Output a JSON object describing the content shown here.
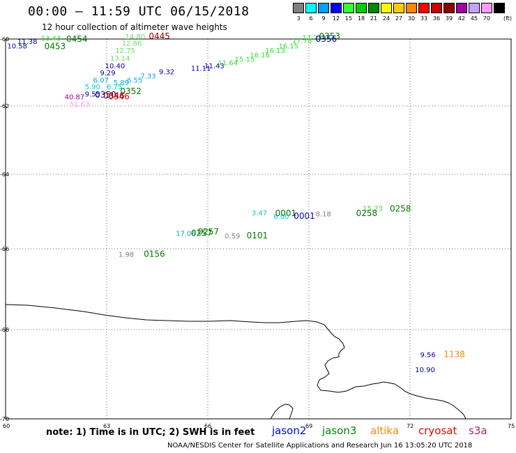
{
  "header": {
    "title": "00:00 – 11:59 UTC 06/15/2018",
    "subtitle": "12 hour collection of altimeter wave heights"
  },
  "legend": {
    "unit": "(ft)",
    "items": [
      {
        "label": "3",
        "color": "#808080"
      },
      {
        "label": "6",
        "color": "#00ffff"
      },
      {
        "label": "9",
        "color": "#00a0ff"
      },
      {
        "label": "12",
        "color": "#0000ff"
      },
      {
        "label": "15",
        "color": "#33ff33"
      },
      {
        "label": "18",
        "color": "#00cc00"
      },
      {
        "label": "21",
        "color": "#008800"
      },
      {
        "label": "24",
        "color": "#ffff00"
      },
      {
        "label": "27",
        "color": "#ffcc00"
      },
      {
        "label": "30",
        "color": "#ff8800"
      },
      {
        "label": "33",
        "color": "#ff0000"
      },
      {
        "label": "36",
        "color": "#cc0000"
      },
      {
        "label": "39",
        "color": "#880000"
      },
      {
        "label": "42",
        "color": "#a000a0"
      },
      {
        "label": "45",
        "color": "#c8a0ff"
      },
      {
        "label": "70",
        "color": "#ff99ff"
      },
      {
        "label": "",
        "color": "#000000"
      }
    ]
  },
  "axes": {
    "lon_ticks": [
      "60",
      "63",
      "66",
      "69",
      "72",
      "75"
    ],
    "lat_ticks": [
      "-60",
      "-62",
      "-64",
      "-66",
      "-68",
      "-70"
    ]
  },
  "observations": [
    {
      "text": "10.58",
      "lon": 60.05,
      "lat": -60.28,
      "color": "#0000aa"
    },
    {
      "text": "11.38",
      "lon": 60.35,
      "lat": -60.15,
      "color": "#0000aa"
    },
    {
      "text": "13.43",
      "lon": 61.05,
      "lat": -60.05,
      "color": "#33dd33"
    },
    {
      "text": "0453",
      "lon": 61.15,
      "lat": -60.3,
      "color": "#007700"
    },
    {
      "text": "0454",
      "lon": 61.8,
      "lat": -60.08,
      "color": "#007700"
    },
    {
      "text": "14.80",
      "lon": 63.55,
      "lat": -59.98,
      "color": "#66dd66"
    },
    {
      "text": "0445",
      "lon": 64.25,
      "lat": -59.98,
      "color": "#880000"
    },
    {
      "text": "12.86",
      "lon": 63.45,
      "lat": -60.2,
      "color": "#66dd66"
    },
    {
      "text": "12.75",
      "lon": 63.25,
      "lat": -60.42,
      "color": "#66dd66"
    },
    {
      "text": "13.14",
      "lon": 63.1,
      "lat": -60.65,
      "color": "#66dd66"
    },
    {
      "text": "10.40",
      "lon": 62.95,
      "lat": -60.87,
      "color": "#0000aa"
    },
    {
      "text": "9.29",
      "lon": 62.8,
      "lat": -61.08,
      "color": "#0000aa"
    },
    {
      "text": "6.07",
      "lon": 62.6,
      "lat": -61.3,
      "color": "#00aadd"
    },
    {
      "text": "5.89",
      "lon": 63.2,
      "lat": -61.38,
      "color": "#00aadd"
    },
    {
      "text": "6.55",
      "lon": 63.6,
      "lat": -61.3,
      "color": "#00aadd"
    },
    {
      "text": "7.33",
      "lon": 64.0,
      "lat": -61.18,
      "color": "#00aadd"
    },
    {
      "text": "9.32",
      "lon": 64.55,
      "lat": -61.05,
      "color": "#0000aa"
    },
    {
      "text": "5.90",
      "lon": 62.35,
      "lat": -61.5,
      "color": "#00cccc"
    },
    {
      "text": "6.75",
      "lon": 63.0,
      "lat": -61.5,
      "color": "#00cccc"
    },
    {
      "text": "0352",
      "lon": 63.4,
      "lat": -61.65,
      "color": "#007700"
    },
    {
      "text": "40.87",
      "lon": 61.75,
      "lat": -61.8,
      "color": "#990099"
    },
    {
      "text": "9.55",
      "lon": 62.35,
      "lat": -61.72,
      "color": "#0000aa"
    },
    {
      "text": "0350",
      "lon": 62.65,
      "lat": -61.75,
      "color": "#0000aa"
    },
    {
      "text": "0346",
      "lon": 62.9,
      "lat": -61.78,
      "color": "#880000"
    },
    {
      "text": "0346",
      "lon": 63.05,
      "lat": -61.8,
      "color": "#cc0000"
    },
    {
      "text": "51.63",
      "lon": 61.9,
      "lat": -62.02,
      "color": "#ff99ff"
    },
    {
      "text": "11.11",
      "lon": 65.5,
      "lat": -60.95,
      "color": "#0000aa"
    },
    {
      "text": "11.43",
      "lon": 65.9,
      "lat": -60.88,
      "color": "#0000aa"
    },
    {
      "text": "11.64",
      "lon": 66.3,
      "lat": -60.78,
      "color": "#33dd33"
    },
    {
      "text": "15.15",
      "lon": 66.8,
      "lat": -60.68,
      "color": "#33dd33"
    },
    {
      "text": "16.16",
      "lon": 67.25,
      "lat": -60.55,
      "color": "#33dd33"
    },
    {
      "text": "16.13",
      "lon": 67.7,
      "lat": -60.42,
      "color": "#33dd33"
    },
    {
      "text": "16.15",
      "lon": 68.1,
      "lat": -60.28,
      "color": "#33dd33"
    },
    {
      "text": "17.78",
      "lon": 68.5,
      "lat": -60.12,
      "color": "#33dd33"
    },
    {
      "text": "17.23",
      "lon": 68.8,
      "lat": -60.03,
      "color": "#33dd33"
    },
    {
      "text": "0353",
      "lon": 69.3,
      "lat": -60.0,
      "color": "#007700"
    },
    {
      "text": "0356",
      "lon": 69.2,
      "lat": -60.08,
      "color": "#0000aa"
    },
    {
      "text": "3.47",
      "lon": 67.3,
      "lat": -65.1,
      "color": "#00cccc"
    },
    {
      "text": "0001",
      "lon": 68.0,
      "lat": -65.12,
      "color": "#007700"
    },
    {
      "text": "6.00",
      "lon": 67.95,
      "lat": -65.2,
      "color": "#00cccc"
    },
    {
      "text": "0001",
      "lon": 68.55,
      "lat": -65.2,
      "color": "#0000aa"
    },
    {
      "text": "8.18",
      "lon": 69.2,
      "lat": -65.13,
      "color": "#808080"
    },
    {
      "text": "15.23",
      "lon": 70.6,
      "lat": -64.98,
      "color": "#33dd33"
    },
    {
      "text": "0258",
      "lon": 70.4,
      "lat": -65.12,
      "color": "#007700"
    },
    {
      "text": "0258",
      "lon": 71.4,
      "lat": -65.0,
      "color": "#007700"
    },
    {
      "text": "17.06",
      "lon": 65.05,
      "lat": -65.65,
      "color": "#00aadd"
    },
    {
      "text": "0257",
      "lon": 65.5,
      "lat": -65.65,
      "color": "#007700"
    },
    {
      "text": "0257",
      "lon": 65.7,
      "lat": -65.62,
      "color": "#007700"
    },
    {
      "text": "0.59",
      "lon": 66.5,
      "lat": -65.72,
      "color": "#808080"
    },
    {
      "text": "0101",
      "lon": 67.15,
      "lat": -65.72,
      "color": "#007700"
    },
    {
      "text": "1.98",
      "lon": 63.35,
      "lat": -66.2,
      "color": "#808080"
    },
    {
      "text": "0156",
      "lon": 64.1,
      "lat": -66.2,
      "color": "#007700"
    },
    {
      "text": "9.56",
      "lon": 72.3,
      "lat": -68.62,
      "color": "#0000aa"
    },
    {
      "text": "1138",
      "lon": 73.0,
      "lat": -68.62,
      "color": "#ff8800"
    },
    {
      "text": "10.90",
      "lon": 72.15,
      "lat": -68.95,
      "color": "#0000aa"
    }
  ],
  "footer": {
    "note": "note: 1) Time is in UTC; 2) SWH is in feet",
    "missions": [
      {
        "label": "jason2",
        "color": "#0000ee"
      },
      {
        "label": "jason3",
        "color": "#008800"
      },
      {
        "label": "altika",
        "color": "#ff8800"
      },
      {
        "label": "cryosat",
        "color": "#ee0000"
      },
      {
        "label": "s3a",
        "color": "#aa2266"
      }
    ],
    "credit": "NOAA/NESDIS Center for Satellite Applications and Research    Jun 16 13:05:20 UTC 2018"
  }
}
